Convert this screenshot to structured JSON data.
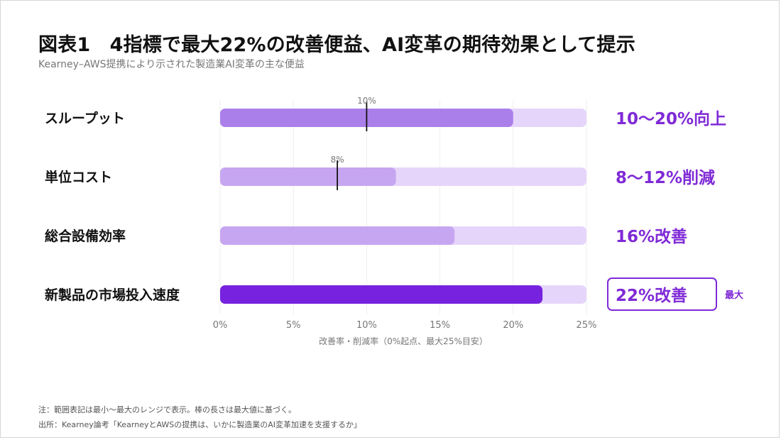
{
  "title": "図表1　4指標で最大22%の改善便益、AI変革の期待効果として提示",
  "subtitle": "Kearney–AWS提携により示された製造業AI変革の主な便益",
  "chart_data": {
    "type": "bar",
    "orientation": "horizontal",
    "categories": [
      "スループット",
      "単位コスト",
      "総合設備効率",
      "新製品の市場投入速度"
    ],
    "values": [
      20,
      12,
      16,
      22
    ],
    "range_min": [
      10,
      8,
      null,
      null
    ],
    "range_min_labels": [
      "10%",
      "8%",
      "",
      ""
    ],
    "value_labels": [
      "10〜20%向上",
      "8〜12%削減",
      "16%改善",
      "22%改善"
    ],
    "highlight_index": 3,
    "highlight_badge": "最大",
    "xlim": [
      0,
      25
    ],
    "xticks": [
      "0%",
      "5%",
      "10%",
      "15%",
      "20%",
      "25%"
    ],
    "xtick_values": [
      0,
      5,
      10,
      15,
      20,
      25
    ],
    "xlabel": "改善率・削減率（0%起点、最大25%目安）",
    "grid": true,
    "colors": {
      "track": "#e6d5fa",
      "bar_normal": [
        "#ab7fea",
        "#c7a6f1",
        "#c7a6f1",
        "#7622de"
      ],
      "label": "#7f2ad6",
      "marker": "#111111",
      "grid": "#eeeeee"
    }
  },
  "footnotes": {
    "note": "注：範囲表記は最小〜最大のレンジで表示。棒の長さは最大値に基づく。",
    "source": "出所：Kearney論考「KearneyとAWSの提携は、いかに製造業のAI変革加速を支援するか」"
  }
}
